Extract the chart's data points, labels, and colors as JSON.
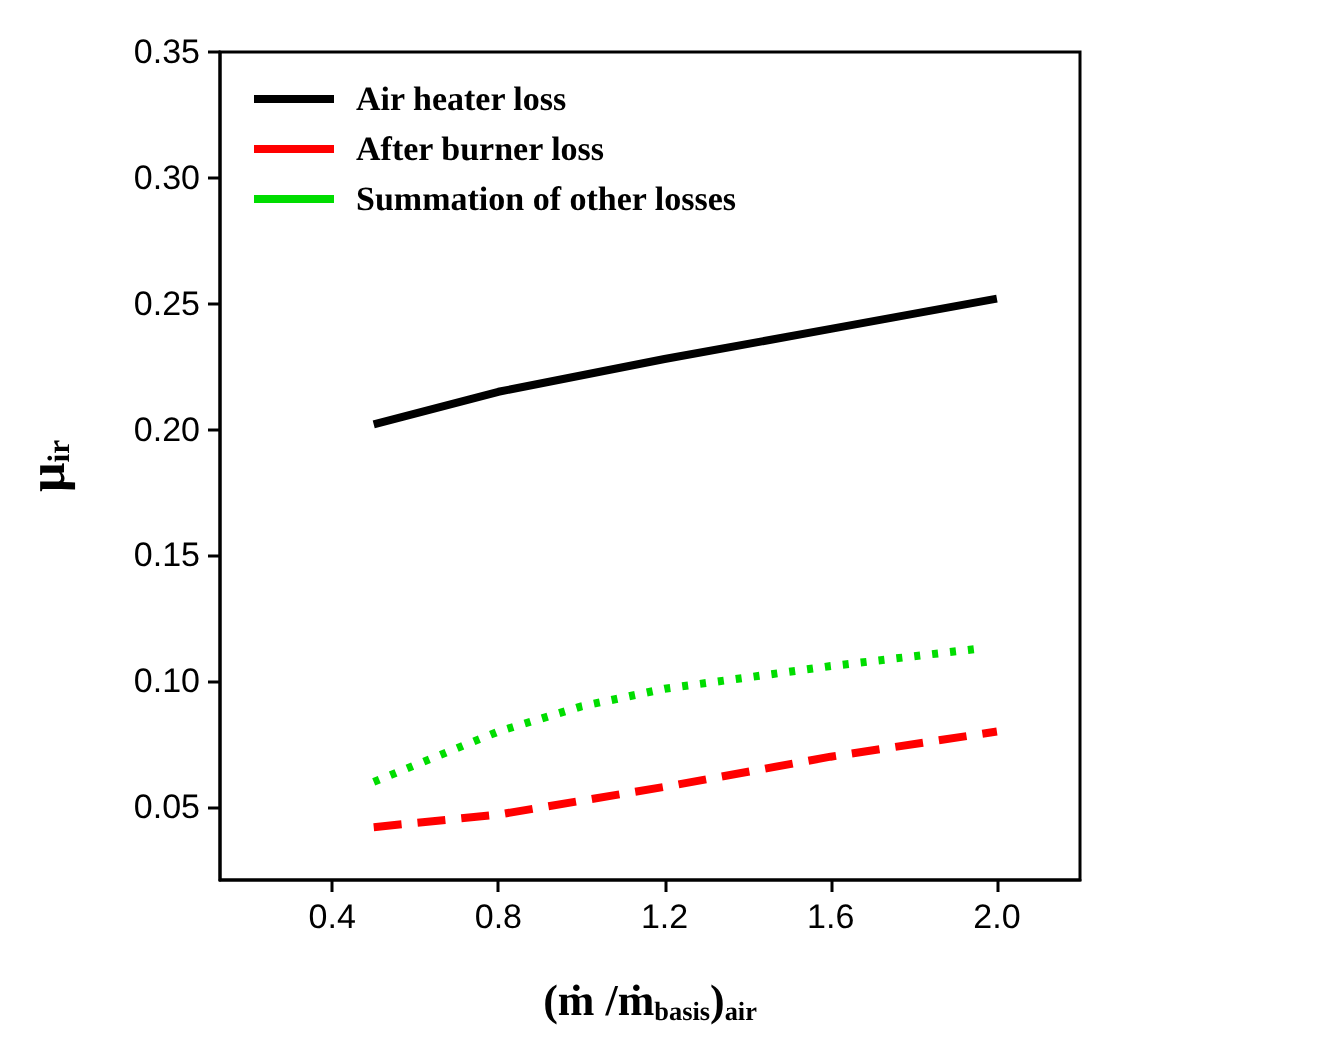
{
  "chart_data": {
    "type": "line",
    "xlabel": "(ṁ /ṁ$_{basis}$)$_{air}$",
    "ylabel": "μ$_{ir}$",
    "xlim": [
      0.13,
      2.2
    ],
    "xticks": [
      0.4,
      0.8,
      1.2,
      1.6,
      {
        "value": 2.0,
        "label": "2.0"
      }
    ],
    "ylim": [
      0.021,
      0.35
    ],
    "yticks": [
      0.05,
      {
        "value": 0.1,
        "label": "0.10"
      },
      0.15,
      {
        "value": 0.2,
        "label": "0.20"
      },
      0.25,
      {
        "value": 0.3,
        "label": "0.30"
      },
      0.35
    ],
    "grid": false,
    "legend": "top left",
    "marker": "none",
    "series": [
      {
        "name": "Air heater loss",
        "color": "#000000",
        "line_style": "solid",
        "x": [
          0.5,
          0.8,
          1.2,
          1.6,
          2.0
        ],
        "values": [
          0.202,
          0.215,
          0.228,
          0.24,
          0.252
        ]
      },
      {
        "name": "After burner loss",
        "color": "#ff0000",
        "line_style": "dashed",
        "x": [
          0.5,
          0.8,
          1.2,
          1.6,
          2.0
        ],
        "values": [
          0.042,
          0.047,
          0.058,
          0.07,
          0.08
        ]
      },
      {
        "name": "Summation of other losses",
        "color": "#00dd00",
        "line_style": "dotted",
        "x": [
          0.5,
          0.8,
          1.0,
          1.2,
          1.6,
          1.96
        ],
        "values": [
          0.06,
          0.08,
          0.09,
          0.097,
          0.106,
          0.113
        ]
      }
    ]
  }
}
